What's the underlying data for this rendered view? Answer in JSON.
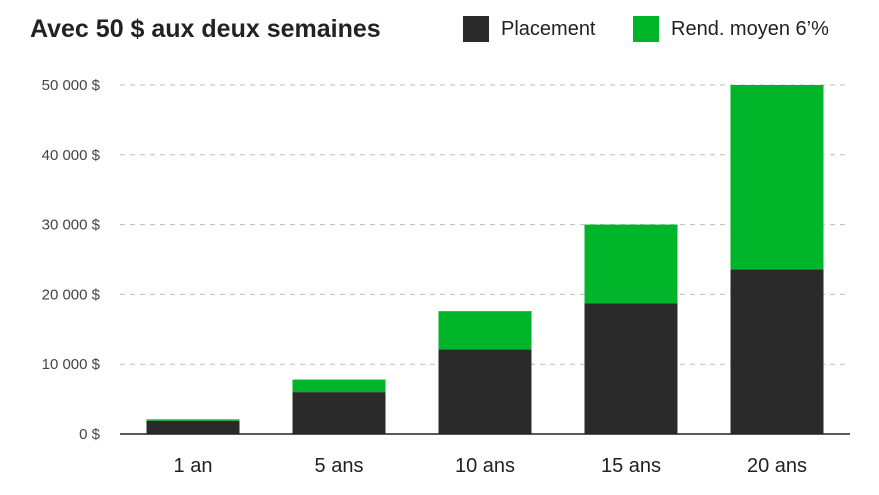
{
  "chart_data": {
    "type": "bar",
    "stacked": true,
    "title": "Avec 50 $ aux deux semaines",
    "xlabel": "",
    "ylabel": "",
    "categories": [
      "1 an",
      "5 ans",
      "10 ans",
      "15 ans",
      "20 ans"
    ],
    "series": [
      {
        "name": "Placement",
        "color": "#2a2a2a",
        "values": [
          1900,
          6000,
          12100,
          18700,
          23600
        ]
      },
      {
        "name": "Rend. moyen 6’%",
        "color": "#00b52a",
        "values": [
          200,
          1800,
          5500,
          11300,
          26400
        ]
      }
    ],
    "ylim": [
      0,
      50000
    ],
    "yticks": [
      0,
      10000,
      20000,
      30000,
      40000,
      50000
    ],
    "ytick_labels": [
      "0 $",
      "10 000 $",
      "20 000 $",
      "30 000 $",
      "40 000 $",
      "50 000 $"
    ],
    "grid": true,
    "legend_position": "top-right"
  }
}
